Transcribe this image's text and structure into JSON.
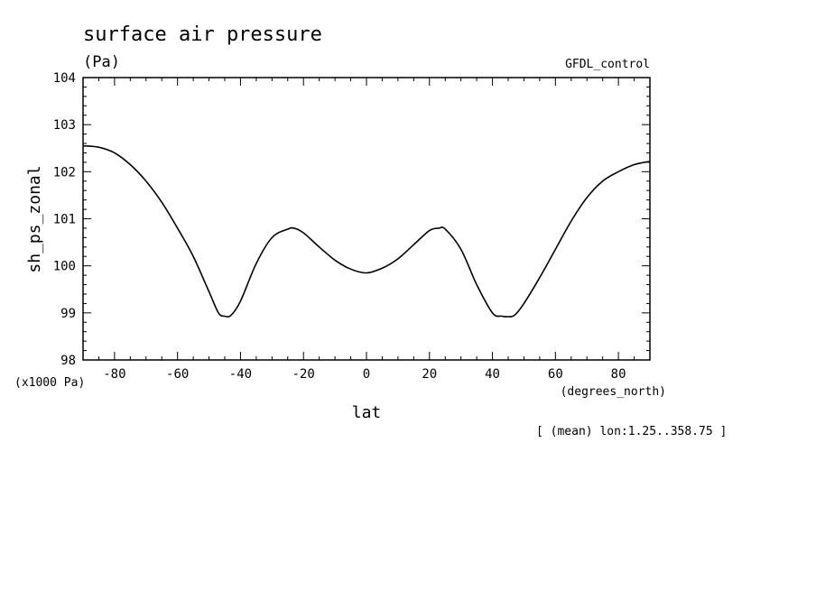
{
  "chart_data": {
    "type": "line",
    "title": "surface air pressure",
    "subtitle": "(Pa)",
    "source_label": "GFDL_control",
    "ylabel": "sh_ps_zonal",
    "y_scale_note": "(x1000 Pa)",
    "xlabel": "lat",
    "x_units": "(degrees_north)",
    "footnote": "[ (mean) lon:1.25..358.75 ]",
    "xlim": [
      -90,
      90
    ],
    "ylim": [
      98,
      104
    ],
    "x_ticks": [
      -80,
      -60,
      -40,
      -20,
      0,
      20,
      40,
      60,
      80
    ],
    "x_tick_labels": [
      "-80",
      "-60",
      "-40",
      "-20",
      "0",
      "20",
      "40",
      "60",
      "80"
    ],
    "y_ticks": [
      98,
      99,
      100,
      101,
      102,
      103,
      104
    ],
    "y_tick_labels": [
      "98",
      "99",
      "100",
      "101",
      "102",
      "103",
      "104"
    ],
    "grid": false,
    "series": [
      {
        "x": [
          -90,
          -85,
          -80,
          -75,
          -70,
          -65,
          -60,
          -55,
          -50,
          -47,
          -45,
          -43,
          -40,
          -35,
          -30,
          -25,
          -23,
          -20,
          -15,
          -10,
          -5,
          0,
          5,
          10,
          15,
          20,
          23,
          25,
          30,
          35,
          40,
          43,
          45,
          47,
          50,
          55,
          60,
          65,
          70,
          75,
          80,
          85,
          90
        ],
        "y": [
          102.55,
          102.52,
          102.4,
          102.15,
          101.8,
          101.35,
          100.8,
          100.2,
          99.45,
          99.0,
          98.93,
          98.95,
          99.25,
          100.05,
          100.6,
          100.78,
          100.8,
          100.7,
          100.4,
          100.12,
          99.93,
          99.85,
          99.95,
          100.15,
          100.45,
          100.75,
          100.8,
          100.78,
          100.35,
          99.6,
          99.0,
          98.93,
          98.92,
          98.95,
          99.2,
          99.75,
          100.35,
          100.95,
          101.45,
          101.8,
          102.0,
          102.15,
          102.22
        ]
      }
    ]
  }
}
